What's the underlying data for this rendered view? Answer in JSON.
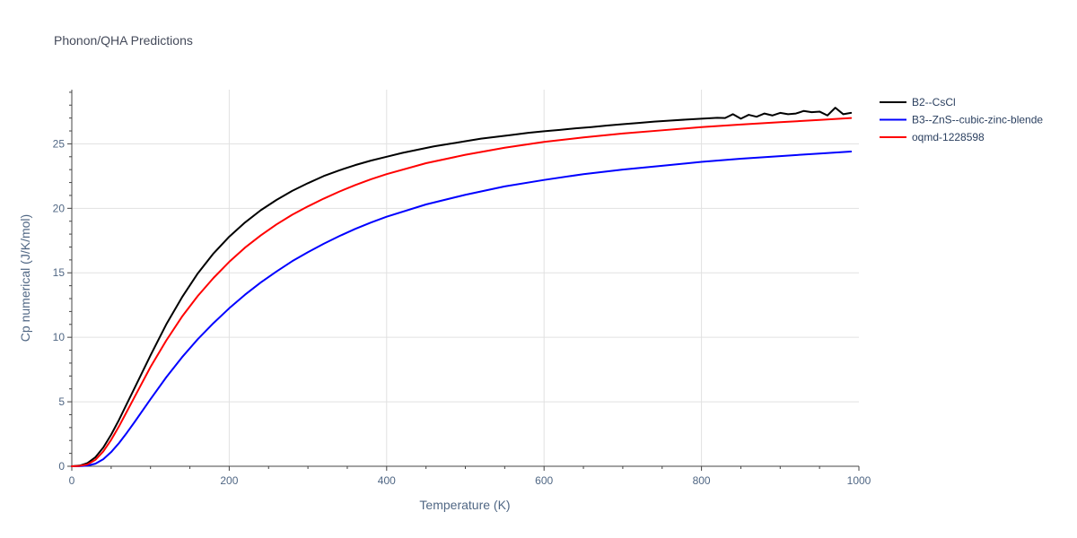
{
  "title": "Phonon/QHA Predictions",
  "xlabel": "Temperature (K)",
  "ylabel": "Cp numerical (J/K/mol)",
  "chart_data": {
    "type": "line",
    "title": "Phonon/QHA Predictions",
    "xlabel": "Temperature (K)",
    "ylabel": "Cp numerical (J/K/mol)",
    "xlim": [
      0,
      1000
    ],
    "ylim": [
      0,
      29.2
    ],
    "x_ticks": [
      "0",
      "200",
      "400",
      "600",
      "800",
      "1000"
    ],
    "y_ticks": [
      "0",
      "5",
      "10",
      "15",
      "20",
      "25"
    ],
    "x_tick_values": [
      0,
      200,
      400,
      600,
      800,
      1000
    ],
    "y_tick_values": [
      0,
      5,
      10,
      15,
      20,
      25
    ],
    "grid": true,
    "legend_position": "top-right",
    "series": [
      {
        "name": "B2--CsCl",
        "color": "#000000",
        "x": [
          0,
          10,
          20,
          30,
          40,
          50,
          60,
          70,
          80,
          100,
          120,
          140,
          160,
          180,
          200,
          220,
          240,
          260,
          280,
          300,
          320,
          340,
          360,
          380,
          400,
          420,
          440,
          460,
          480,
          500,
          520,
          540,
          560,
          580,
          600,
          620,
          640,
          660,
          680,
          700,
          720,
          740,
          760,
          780,
          800,
          820,
          830,
          840,
          850,
          860,
          870,
          880,
          890,
          900,
          910,
          920,
          930,
          940,
          950,
          960,
          970,
          980,
          990
        ],
        "values": [
          0,
          0.05,
          0.25,
          0.7,
          1.45,
          2.45,
          3.6,
          4.85,
          6.1,
          8.6,
          11.0,
          13.1,
          14.95,
          16.5,
          17.8,
          18.9,
          19.85,
          20.65,
          21.35,
          21.95,
          22.5,
          22.95,
          23.35,
          23.7,
          24.0,
          24.3,
          24.55,
          24.8,
          25.0,
          25.2,
          25.4,
          25.55,
          25.7,
          25.85,
          25.98,
          26.08,
          26.2,
          26.3,
          26.42,
          26.52,
          26.62,
          26.72,
          26.8,
          26.88,
          26.95,
          27.02,
          27.0,
          27.3,
          26.95,
          27.25,
          27.1,
          27.35,
          27.2,
          27.4,
          27.3,
          27.35,
          27.55,
          27.45,
          27.5,
          27.2,
          27.8,
          27.3,
          27.4
        ]
      },
      {
        "name": "B3--ZnS--cubic-zinc-blende",
        "color": "#0000ff",
        "x": [
          0,
          10,
          20,
          30,
          40,
          50,
          60,
          70,
          80,
          100,
          120,
          140,
          160,
          180,
          200,
          220,
          240,
          260,
          280,
          300,
          320,
          340,
          360,
          380,
          400,
          450,
          500,
          550,
          600,
          650,
          700,
          750,
          800,
          850,
          900,
          950,
          990
        ],
        "values": [
          0,
          0.01,
          0.05,
          0.2,
          0.55,
          1.1,
          1.8,
          2.6,
          3.45,
          5.2,
          6.9,
          8.45,
          9.85,
          11.1,
          12.25,
          13.3,
          14.25,
          15.1,
          15.9,
          16.6,
          17.25,
          17.85,
          18.4,
          18.9,
          19.35,
          20.3,
          21.05,
          21.7,
          22.2,
          22.65,
          23.0,
          23.3,
          23.6,
          23.85,
          24.05,
          24.25,
          24.4
        ]
      },
      {
        "name": "oqmd-1228598",
        "color": "#ff0000",
        "x": [
          0,
          10,
          20,
          30,
          40,
          50,
          60,
          70,
          80,
          100,
          120,
          140,
          160,
          180,
          200,
          220,
          240,
          260,
          280,
          300,
          320,
          340,
          360,
          380,
          400,
          450,
          500,
          550,
          600,
          650,
          700,
          750,
          800,
          850,
          900,
          950,
          990
        ],
        "values": [
          0,
          0.03,
          0.15,
          0.5,
          1.15,
          2.05,
          3.1,
          4.25,
          5.4,
          7.7,
          9.75,
          11.6,
          13.2,
          14.6,
          15.85,
          16.95,
          17.9,
          18.75,
          19.5,
          20.15,
          20.75,
          21.3,
          21.8,
          22.25,
          22.65,
          23.5,
          24.15,
          24.7,
          25.15,
          25.5,
          25.8,
          26.05,
          26.3,
          26.5,
          26.68,
          26.85,
          27.0
        ]
      }
    ]
  }
}
